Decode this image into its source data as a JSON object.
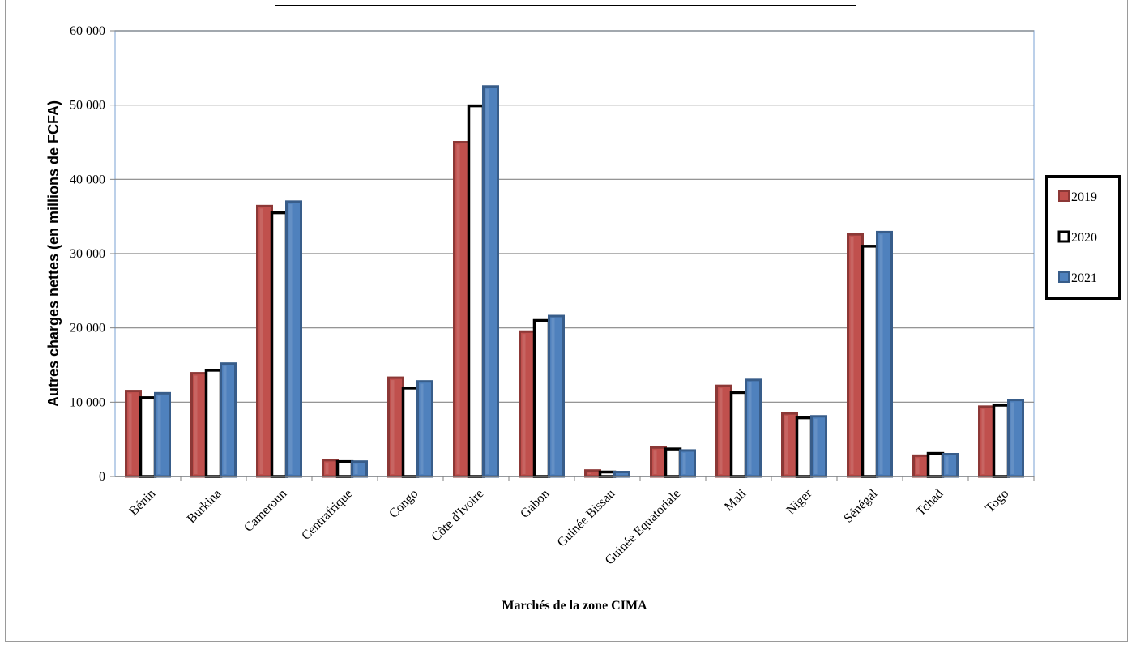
{
  "chart_data": {
    "type": "bar",
    "title": "",
    "xlabel": "Marchés de la zone CIMA",
    "ylabel": "Autres charges nettes (en millions de FCFA)",
    "ylim": [
      0,
      60000
    ],
    "yticks": [
      0,
      10000,
      20000,
      30000,
      40000,
      50000,
      60000
    ],
    "ytick_labels": [
      "0",
      "10 000",
      "20 000",
      "30 000",
      "40 000",
      "50 000",
      "60 000"
    ],
    "grid": true,
    "legend_position": "right",
    "categories": [
      "Bénin",
      "Burkina",
      "Cameroun",
      "Centrafrique",
      "Congo",
      "Côte d'Ivoire",
      "Gabon",
      "Guinée Bissau",
      "Guinée Equatoriale",
      "Mali",
      "Niger",
      "Sénégal",
      "Tchad",
      "Togo"
    ],
    "series": [
      {
        "name": "2019",
        "color": "#c0504d",
        "values": [
          11500,
          13900,
          36400,
          2200,
          13300,
          45000,
          19500,
          800,
          3900,
          12200,
          8500,
          32600,
          2800,
          9400
        ]
      },
      {
        "name": "2020",
        "color": "#ffffff",
        "values": [
          10600,
          14300,
          35500,
          2000,
          11900,
          49900,
          21000,
          600,
          3700,
          11300,
          7900,
          31000,
          3100,
          9600
        ]
      },
      {
        "name": "2021",
        "color": "#4f81bd",
        "values": [
          11200,
          15200,
          37000,
          2000,
          12800,
          52500,
          21600,
          600,
          3500,
          13000,
          8100,
          32900,
          3000,
          10300
        ]
      }
    ]
  }
}
